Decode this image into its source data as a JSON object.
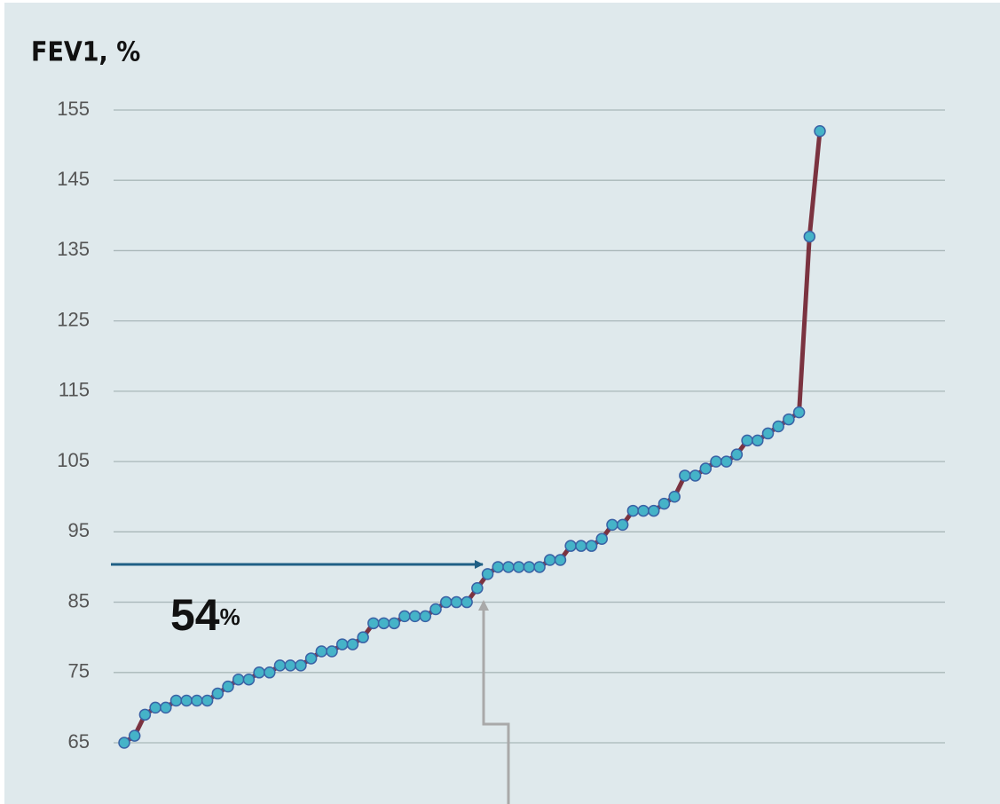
{
  "chart_data": {
    "type": "line",
    "title": "FEV1, %",
    "annotation": {
      "number": "54",
      "suffix": "%"
    },
    "categories": [
      null,
      null,
      null,
      null,
      null,
      null,
      null,
      null,
      null,
      null,
      null,
      null,
      null,
      null,
      null,
      null,
      null,
      null,
      null,
      null,
      null,
      null,
      null,
      null,
      null,
      null,
      null,
      null,
      null,
      null,
      null,
      null,
      null,
      null,
      null,
      null,
      null,
      null,
      null,
      null,
      null,
      null,
      null,
      null,
      null,
      null,
      null,
      null,
      null,
      null,
      null,
      null,
      null,
      null,
      null,
      null,
      null,
      null,
      null,
      null,
      null,
      null,
      null,
      null,
      null,
      null,
      null,
      null
    ],
    "series": [
      {
        "color": "#7b3340",
        "marker_color": "#45b3c8",
        "values": [
          65,
          66,
          69,
          70,
          70,
          71,
          71,
          71,
          71,
          72,
          73,
          74,
          74,
          75,
          75,
          76,
          76,
          76,
          77,
          78,
          78,
          79,
          79,
          80,
          82,
          82,
          82,
          83,
          83,
          83,
          84,
          85,
          85,
          85,
          87,
          89,
          90,
          90,
          90,
          90,
          90,
          91,
          91,
          93,
          93,
          93,
          94,
          96,
          96,
          98,
          98,
          98,
          99,
          100,
          103,
          103,
          104,
          105,
          105,
          106,
          108,
          108,
          109,
          110,
          111,
          112,
          137,
          152
        ]
      }
    ],
    "ylim": [
      57,
      158
    ],
    "yticks": [
      65,
      75,
      85,
      95,
      105,
      115,
      125,
      135,
      145,
      155
    ],
    "grid": true
  }
}
